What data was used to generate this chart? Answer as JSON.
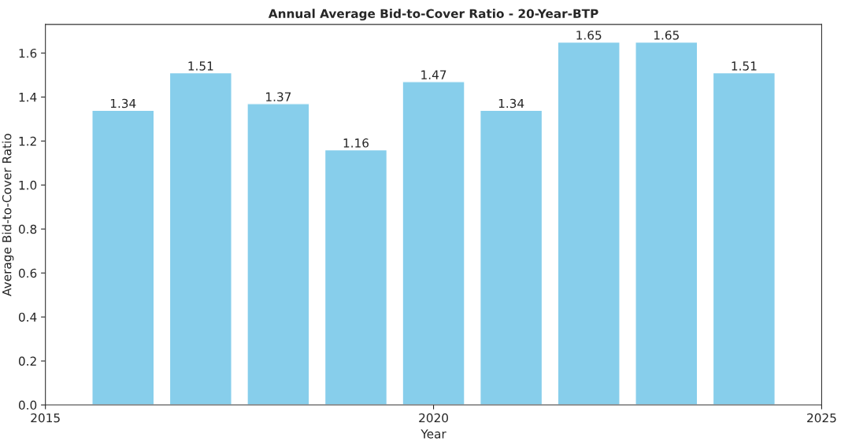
{
  "chart_data": {
    "type": "bar",
    "title": "Annual Average Bid-to-Cover Ratio - 20-Year-BTP",
    "xlabel": "Year",
    "ylabel": "Average Bid-to-Cover Ratio",
    "x": [
      2016,
      2017,
      2018,
      2019,
      2020,
      2021,
      2022,
      2023,
      2024
    ],
    "values": [
      1.34,
      1.51,
      1.37,
      1.16,
      1.47,
      1.34,
      1.65,
      1.65,
      1.51
    ],
    "color": "#87ceeb",
    "data_labels": true,
    "xlim": [
      2015,
      2025
    ],
    "xticks": [
      2015,
      2020,
      2025
    ],
    "ylim": [
      0,
      1.73
    ],
    "yticks": [
      {
        "value": 0,
        "label": "0.0"
      },
      {
        "value": 0.2,
        "label": "0.2"
      },
      {
        "value": 0.4,
        "label": "0.4"
      },
      {
        "value": 0.6,
        "label": "0.6"
      },
      {
        "value": 0.8,
        "label": "0.8"
      },
      {
        "value": 1.0,
        "label": "1.0"
      },
      {
        "value": 1.2,
        "label": "1.2"
      },
      {
        "value": 1.4,
        "label": "1.4"
      },
      {
        "value": 1.6,
        "label": "1.6"
      }
    ],
    "grid": false
  }
}
